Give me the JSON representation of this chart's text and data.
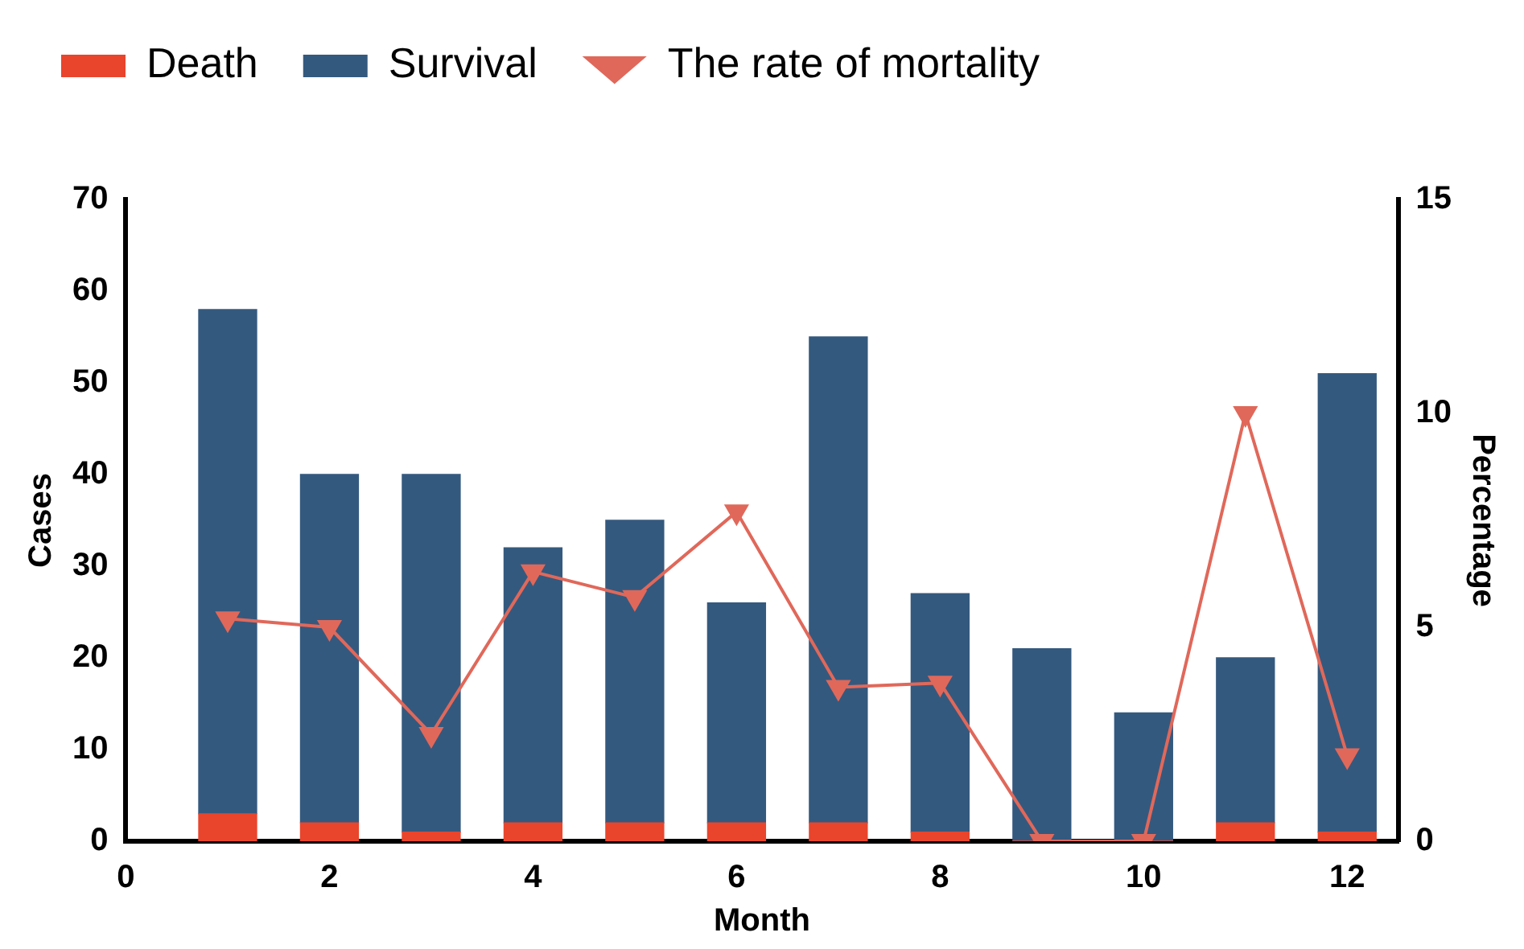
{
  "chart_data": {
    "type": "bar",
    "stacked": true,
    "xlabel": "Month",
    "ylabel": "Cases",
    "y2label": "Percentage",
    "x": [
      1,
      2,
      3,
      4,
      5,
      6,
      7,
      8,
      9,
      10,
      11,
      12
    ],
    "series": [
      {
        "name": "Death",
        "color": "#e8452c",
        "values": [
          3,
          2,
          1,
          2,
          2,
          2,
          2,
          1,
          0,
          0,
          2,
          1
        ]
      },
      {
        "name": "Survival",
        "color": "#34597e",
        "values": [
          55,
          38,
          39,
          30,
          33,
          24,
          53,
          26,
          21,
          14,
          18,
          50
        ]
      },
      {
        "name": "The rate of mortality",
        "type": "line",
        "axis": "y2",
        "color": "#e0685a",
        "marker": "triangle",
        "values": [
          5.2,
          5.0,
          2.5,
          6.3,
          5.7,
          7.7,
          3.6,
          3.7,
          0,
          0,
          10,
          2.0
        ]
      }
    ],
    "xlim": [
      0,
      12.5
    ],
    "xticks": [
      0,
      2,
      4,
      6,
      8,
      10,
      12
    ],
    "ylim": [
      0,
      70
    ],
    "yticks": [
      0,
      10,
      20,
      30,
      40,
      50,
      60,
      70
    ],
    "y2lim": [
      0,
      15
    ],
    "y2ticks": [
      0,
      5,
      10,
      15
    ],
    "grid": false,
    "legend": "top left"
  }
}
